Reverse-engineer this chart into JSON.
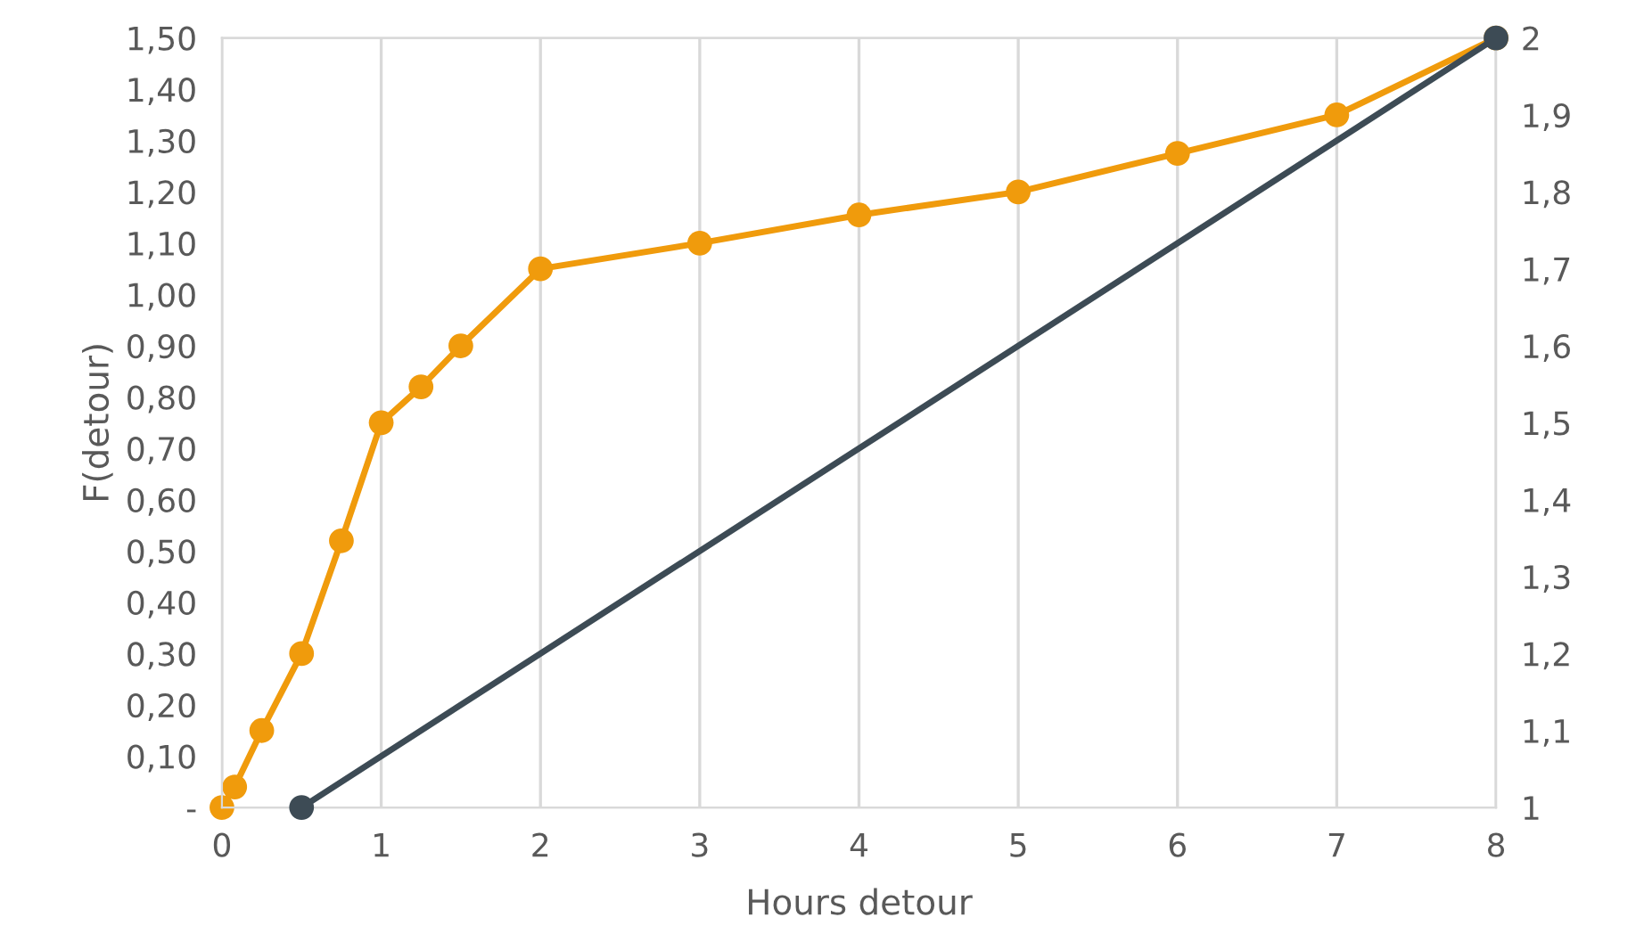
{
  "chart_data": {
    "type": "line",
    "xlabel": "Hours detour",
    "ylabel": "F(detour)",
    "series": [
      {
        "color": "#f09b0c",
        "x": [
          0,
          0.08,
          0.25,
          0.5,
          0.75,
          1,
          1.25,
          1.5,
          2,
          3,
          4,
          5,
          6,
          7,
          8
        ],
        "values": [
          0,
          0.04,
          0.15,
          0.3,
          0.52,
          0.75,
          0.82,
          0.9,
          1.05,
          1.1,
          1.155,
          1.2,
          1.275,
          1.35,
          1.5
        ]
      },
      {
        "color": "#3d4b55",
        "x": [
          0.5,
          8
        ],
        "values": [
          1,
          2
        ],
        "axis": "y2"
      }
    ],
    "xlim": [
      0,
      8
    ],
    "xticks": [
      0,
      1,
      2,
      3,
      4,
      5,
      6,
      7,
      8
    ],
    "ylim": [
      0,
      1.5
    ],
    "yticks": [
      {
        "value": 0,
        "label": "-"
      },
      {
        "value": 0.1,
        "label": "0,10"
      },
      {
        "value": 0.2,
        "label": "0,20"
      },
      {
        "value": 0.3,
        "label": "0,30"
      },
      {
        "value": 0.4,
        "label": "0,40"
      },
      {
        "value": 0.5,
        "label": "0,50"
      },
      {
        "value": 0.6,
        "label": "0,60"
      },
      {
        "value": 0.7,
        "label": "0,70"
      },
      {
        "value": 0.8,
        "label": "0,80"
      },
      {
        "value": 0.9,
        "label": "0,90"
      },
      {
        "value": 1.0,
        "label": "1,00"
      },
      {
        "value": 1.1,
        "label": "1,10"
      },
      {
        "value": 1.2,
        "label": "1,20"
      },
      {
        "value": 1.3,
        "label": "1,30"
      },
      {
        "value": 1.4,
        "label": "1,40"
      },
      {
        "value": 1.5,
        "label": "1,50"
      }
    ],
    "y2lim": [
      1,
      2
    ],
    "y2ticks": [
      1,
      {
        "value": 1.1,
        "label": "1,1"
      },
      {
        "value": 1.2,
        "label": "1,2"
      },
      {
        "value": 1.3,
        "label": "1,3"
      },
      {
        "value": 1.4,
        "label": "1,4"
      },
      {
        "value": 1.5,
        "label": "1,5"
      },
      {
        "value": 1.6,
        "label": "1,6"
      },
      {
        "value": 1.7,
        "label": "1,7"
      },
      {
        "value": 1.8,
        "label": "1,8"
      },
      {
        "value": 1.9,
        "label": "1,9"
      },
      2
    ],
    "grid": "x",
    "marker": "circle",
    "line_style": "solid"
  }
}
